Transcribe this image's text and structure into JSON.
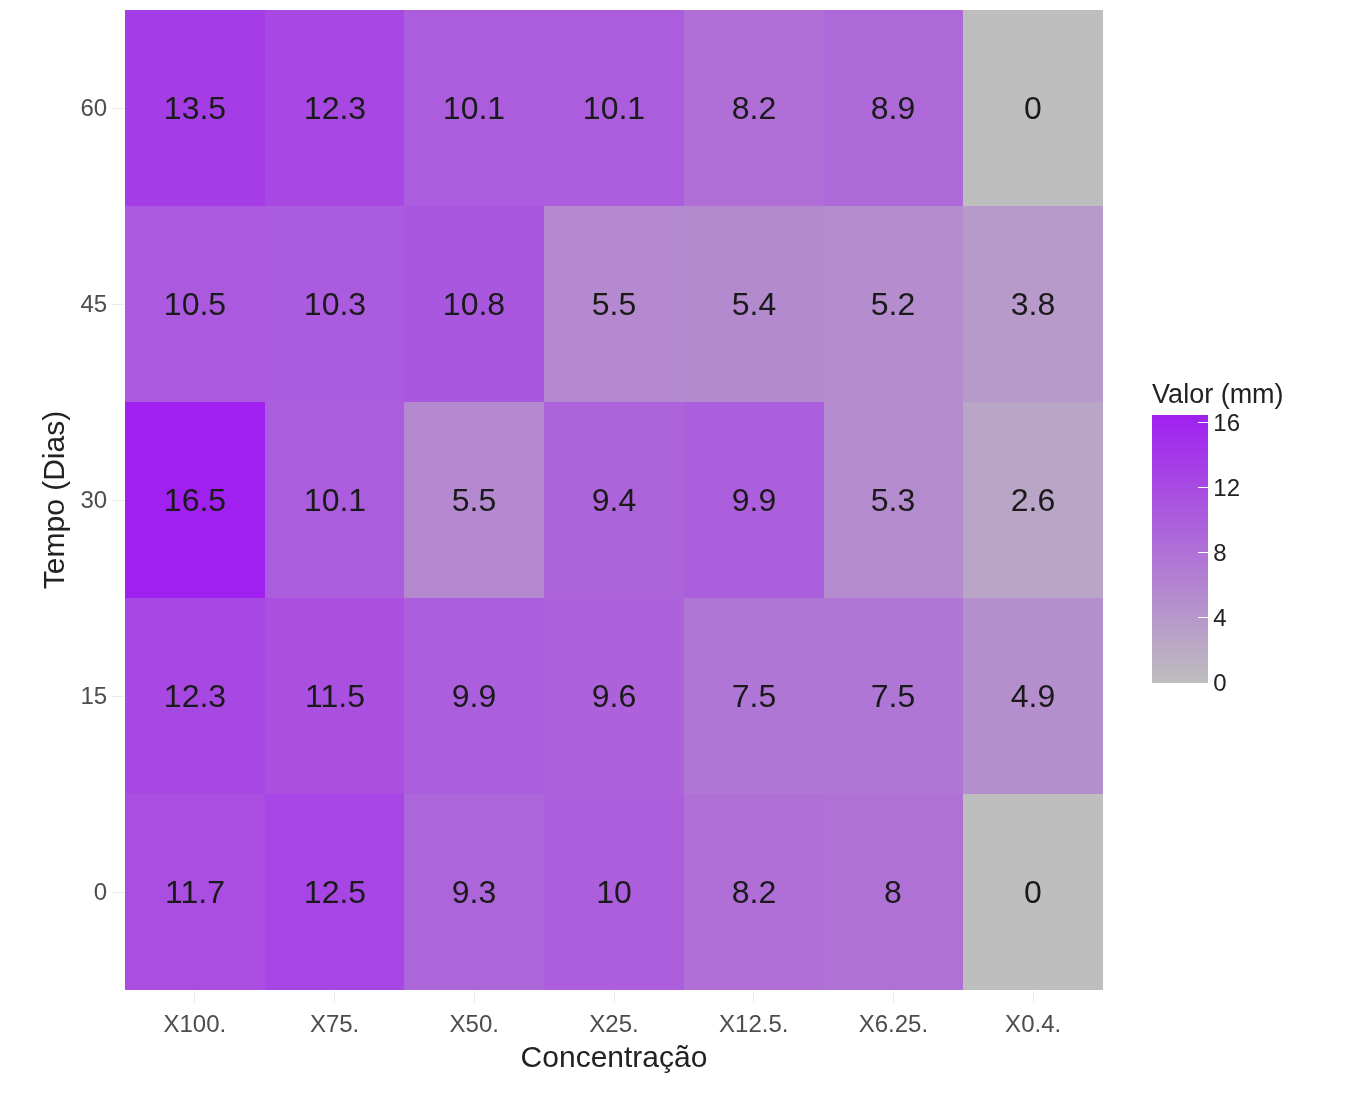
{
  "chart_data": {
    "type": "heatmap",
    "xlabel": "Concentração",
    "ylabel": "Tempo (Dias)",
    "clabel": "Valor (mm)",
    "categories": [
      "X100.",
      "X75.",
      "X50.",
      "X25.",
      "X12.5.",
      "X6.25.",
      "X0.4."
    ],
    "y_categories": [
      "60",
      "45",
      "30",
      "15",
      "0"
    ],
    "cells": [
      [
        13.5,
        12.3,
        10.1,
        10.1,
        8.2,
        8.9,
        0
      ],
      [
        10.5,
        10.3,
        10.8,
        5.5,
        5.4,
        5.2,
        3.8
      ],
      [
        16.5,
        10.1,
        5.5,
        9.4,
        9.9,
        5.3,
        2.6
      ],
      [
        12.3,
        11.5,
        9.9,
        9.6,
        7.5,
        7.5,
        4.9
      ],
      [
        11.7,
        12.5,
        9.3,
        10,
        8.2,
        8,
        0
      ]
    ],
    "clim": [
      0,
      16.5
    ],
    "cticks": [
      0,
      4,
      8,
      12,
      16
    ],
    "data_labels": true
  }
}
